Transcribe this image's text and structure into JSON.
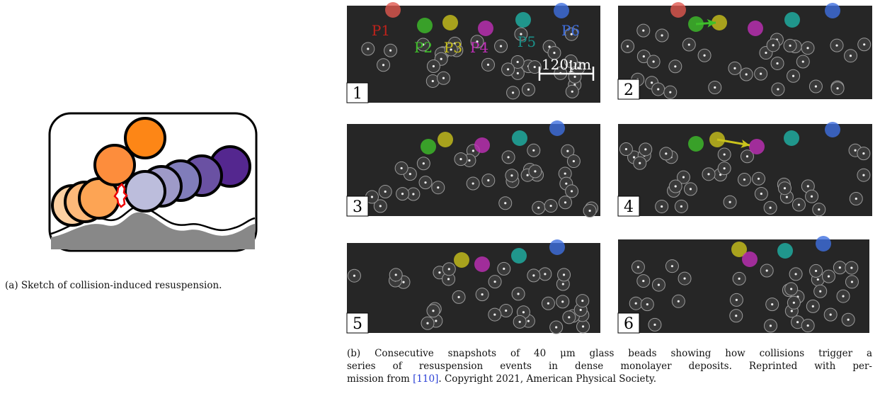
{
  "figure_a": {
    "caption": "(a) Sketch of collision-induced resuspension."
  },
  "figure_b": {
    "panels": [
      "1",
      "2",
      "3",
      "4",
      "5",
      "6"
    ],
    "particle_labels": [
      "P1",
      "P2",
      "P3",
      "P4",
      "P5",
      "P6"
    ],
    "scale_bar": "120µm",
    "caption": {
      "lines": [
        "(b) Consecutive snapshots of 40 μm glass beads showing how collisions trigger a",
        "series of resuspension events in dense monolayer deposits. Reprinted with per-"
      ],
      "last_line": {
        "before": "mission from ",
        "citation": "[110]",
        "after": ". Copyright 2021, American Physical Society."
      }
    }
  }
}
